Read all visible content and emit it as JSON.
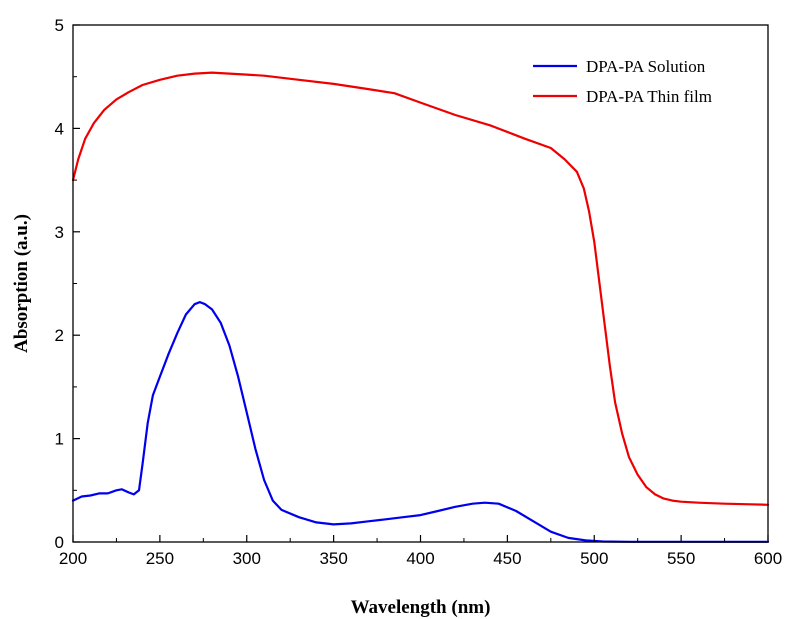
{
  "chart_data": {
    "type": "line",
    "title": "",
    "xlabel": "Wavelength (nm)",
    "ylabel": "Absorption (a.u.)",
    "xlim": [
      200,
      600
    ],
    "ylim": [
      0,
      5
    ],
    "xticks": [
      200,
      250,
      300,
      350,
      400,
      450,
      500,
      550,
      600
    ],
    "yticks": [
      0,
      1,
      2,
      3,
      4,
      5
    ],
    "grid": false,
    "legend_position": "top-right",
    "series": [
      {
        "name": "DPA-PA Solution",
        "color": "#0000ee",
        "x": [
          200,
          205,
          210,
          215,
          220,
          225,
          228,
          232,
          235,
          238,
          240,
          243,
          246,
          250,
          255,
          260,
          265,
          270,
          273,
          276,
          280,
          285,
          290,
          295,
          300,
          305,
          310,
          315,
          320,
          330,
          340,
          350,
          360,
          370,
          380,
          390,
          400,
          410,
          420,
          430,
          437,
          445,
          455,
          465,
          475,
          485,
          495,
          505,
          520,
          550,
          600
        ],
        "values": [
          0.4,
          0.44,
          0.45,
          0.47,
          0.47,
          0.5,
          0.51,
          0.48,
          0.46,
          0.5,
          0.75,
          1.15,
          1.42,
          1.6,
          1.82,
          2.02,
          2.2,
          2.3,
          2.32,
          2.3,
          2.25,
          2.12,
          1.9,
          1.6,
          1.25,
          0.9,
          0.6,
          0.4,
          0.31,
          0.24,
          0.19,
          0.17,
          0.18,
          0.2,
          0.22,
          0.24,
          0.26,
          0.3,
          0.34,
          0.37,
          0.38,
          0.37,
          0.3,
          0.2,
          0.1,
          0.04,
          0.015,
          0.005,
          0.002,
          0.002,
          0.002
        ]
      },
      {
        "name": "DPA-PA Thin film",
        "color": "#ee0000",
        "x": [
          200,
          203,
          207,
          212,
          218,
          225,
          232,
          240,
          250,
          260,
          270,
          280,
          290,
          300,
          310,
          330,
          350,
          370,
          385,
          400,
          420,
          440,
          460,
          475,
          483,
          490,
          494,
          497,
          500,
          503,
          506,
          509,
          512,
          516,
          520,
          525,
          530,
          535,
          540,
          545,
          550,
          560,
          575,
          590,
          600
        ],
        "values": [
          3.5,
          3.7,
          3.9,
          4.05,
          4.18,
          4.28,
          4.35,
          4.42,
          4.47,
          4.51,
          4.53,
          4.54,
          4.53,
          4.52,
          4.51,
          4.47,
          4.43,
          4.38,
          4.34,
          4.25,
          4.13,
          4.03,
          3.9,
          3.81,
          3.7,
          3.58,
          3.42,
          3.2,
          2.9,
          2.5,
          2.1,
          1.7,
          1.35,
          1.05,
          0.82,
          0.65,
          0.53,
          0.46,
          0.42,
          0.4,
          0.39,
          0.38,
          0.37,
          0.365,
          0.36
        ]
      }
    ]
  }
}
